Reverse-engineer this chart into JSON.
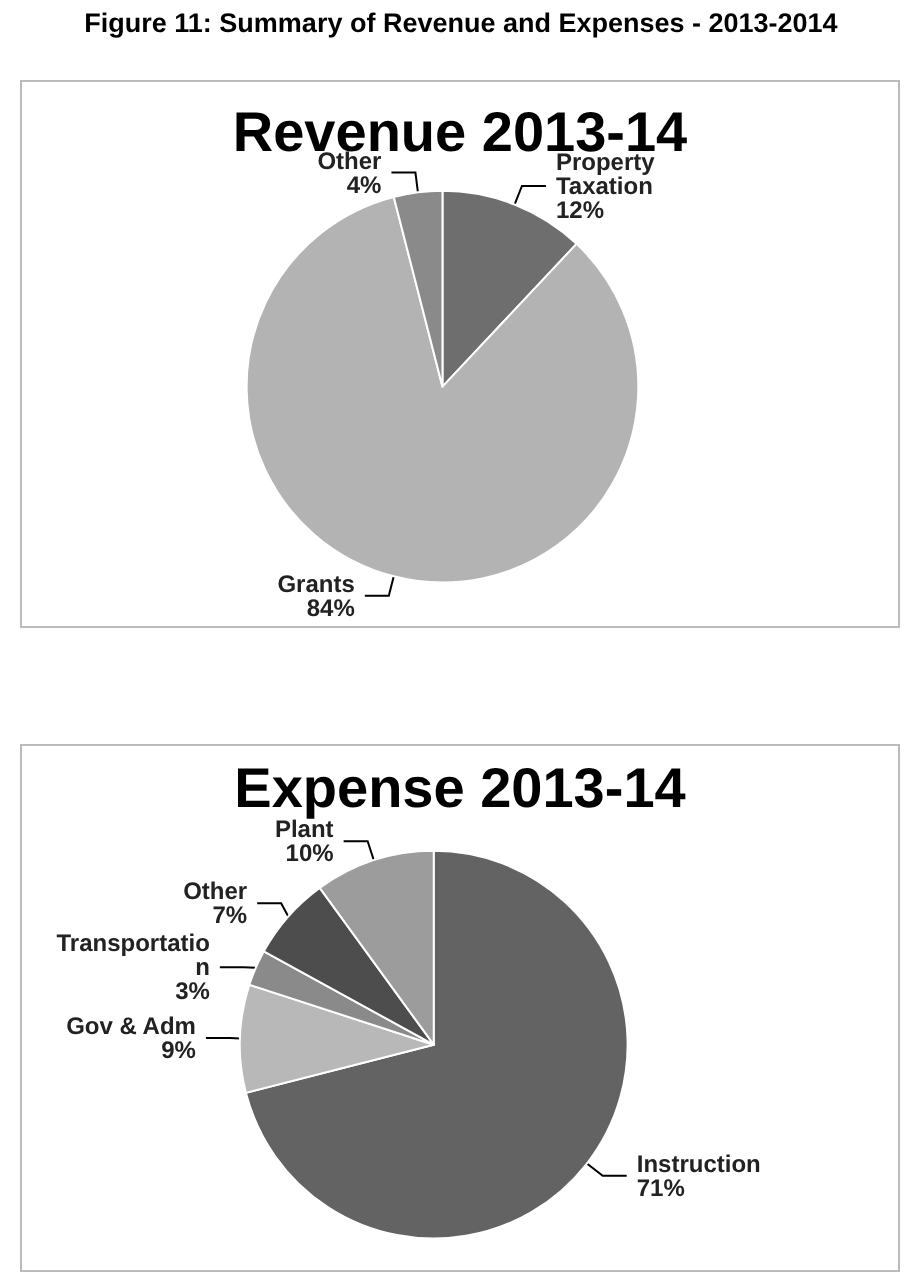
{
  "chart_data": [
    {
      "type": "pie",
      "title": "Revenue 2013-14",
      "annotations": [
        "Figure 11: Summary of Revenue and Expenses - 2013-2014"
      ],
      "categories": [
        "Property Taxation",
        "Grants",
        "Other"
      ],
      "values": [
        12,
        84,
        4
      ],
      "colors": [
        "#6e6e6e",
        "#b3b3b3",
        "#8a8a8a"
      ],
      "value_labels": [
        "12%",
        "84%",
        "4%"
      ],
      "legend": false
    },
    {
      "type": "pie",
      "title": "Expense 2013-14",
      "categories": [
        "Instruction",
        "Gov & Adm",
        "Transportation",
        "Other",
        "Plant"
      ],
      "values": [
        71,
        9,
        3,
        7,
        10
      ],
      "colors": [
        "#636363",
        "#b8b8b8",
        "#8a8a8a",
        "#4d4d4d",
        "#9c9c9c"
      ],
      "value_labels": [
        "71%",
        "9%",
        "3%",
        "7%",
        "10%"
      ],
      "legend": false
    }
  ]
}
